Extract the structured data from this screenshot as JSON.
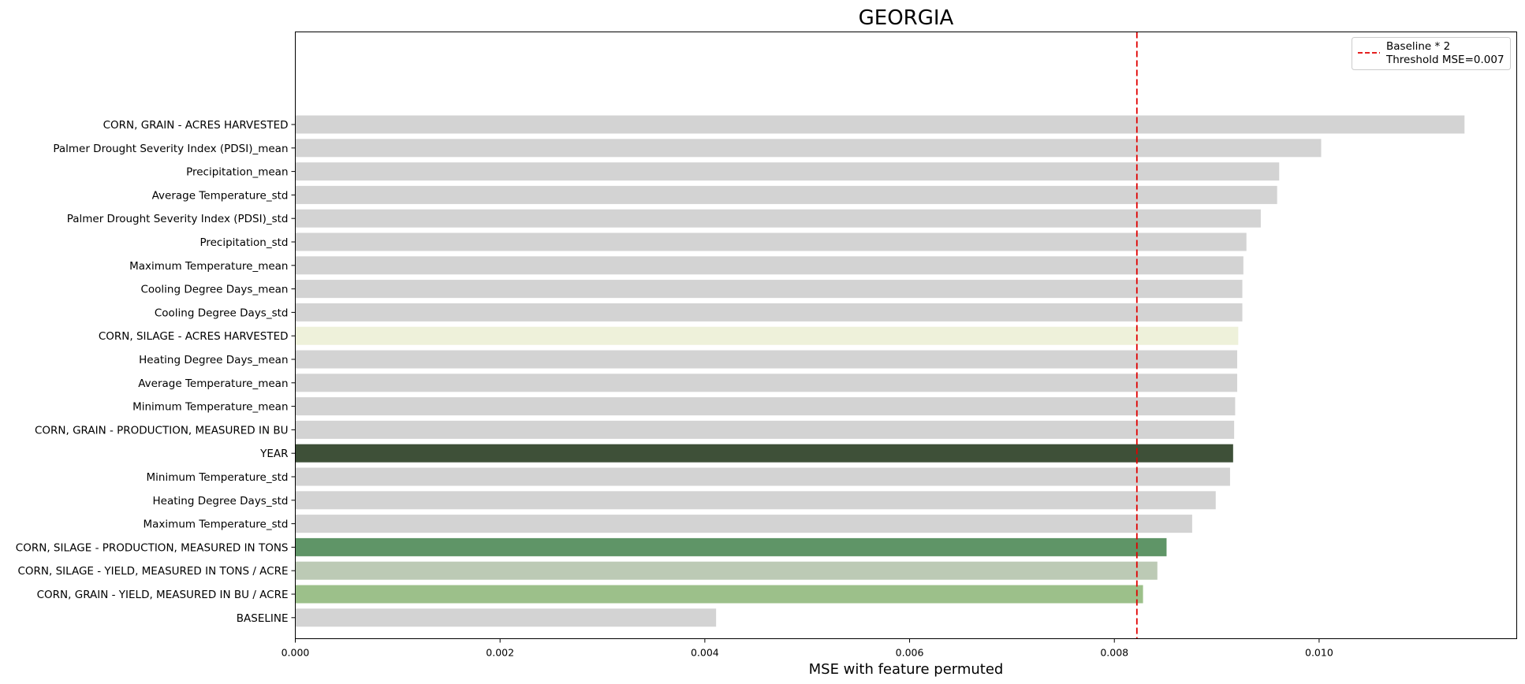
{
  "chart_data": {
    "type": "bar",
    "orientation": "horizontal",
    "title": "GEORGIA",
    "xlabel": "MSE with feature permuted",
    "ylabel": "",
    "xlim": [
      0,
      0.01193
    ],
    "xticks": [
      "0.000",
      "0.002",
      "0.004",
      "0.006",
      "0.008",
      "0.010"
    ],
    "xtick_values": [
      0.0,
      0.002,
      0.004,
      0.006,
      0.008,
      0.01
    ],
    "categories": [
      "CORN, GRAIN - ACRES HARVESTED",
      "Palmer Drought Severity Index (PDSI)_mean",
      "Precipitation_mean",
      "Average Temperature_std",
      "Palmer Drought Severity Index (PDSI)_std",
      "Precipitation_std",
      "Maximum Temperature_mean",
      "Cooling Degree Days_mean",
      "Cooling Degree Days_std",
      "CORN, SILAGE - ACRES HARVESTED",
      "Heating Degree Days_mean",
      "Average Temperature_mean",
      "Minimum Temperature_mean",
      "CORN, GRAIN - PRODUCTION, MEASURED IN BU",
      "YEAR",
      "Minimum Temperature_std",
      "Heating Degree Days_std",
      "Maximum Temperature_std",
      "CORN, SILAGE - PRODUCTION, MEASURED IN TONS",
      "CORN, SILAGE - YIELD, MEASURED IN TONS / ACRE",
      "CORN, GRAIN - YIELD, MEASURED IN BU / ACRE",
      "BASELINE"
    ],
    "values": [
      0.01142,
      0.01002,
      0.00961,
      0.00959,
      0.00943,
      0.00929,
      0.00926,
      0.00925,
      0.00925,
      0.00921,
      0.0092,
      0.0092,
      0.00918,
      0.00917,
      0.00916,
      0.00913,
      0.00899,
      0.00876,
      0.00851,
      0.00842,
      0.00828,
      0.00411
    ],
    "colors": [
      "#d3d3d3",
      "#d3d3d3",
      "#d3d3d3",
      "#d3d3d3",
      "#d3d3d3",
      "#d3d3d3",
      "#d3d3d3",
      "#d3d3d3",
      "#d3d3d3",
      "#eef1da",
      "#d3d3d3",
      "#d3d3d3",
      "#d3d3d3",
      "#d3d3d3",
      "#3e5038",
      "#d3d3d3",
      "#d3d3d3",
      "#d3d3d3",
      "#5f9567",
      "#bccab5",
      "#9cc08a",
      "#d3d3d3"
    ],
    "threshold": {
      "value": 0.00822,
      "color": "#e00000",
      "style": "dashed",
      "legend": [
        "Baseline * 2",
        "Threshold MSE=0.007"
      ]
    },
    "legend_position": "top-right",
    "grid": false
  }
}
